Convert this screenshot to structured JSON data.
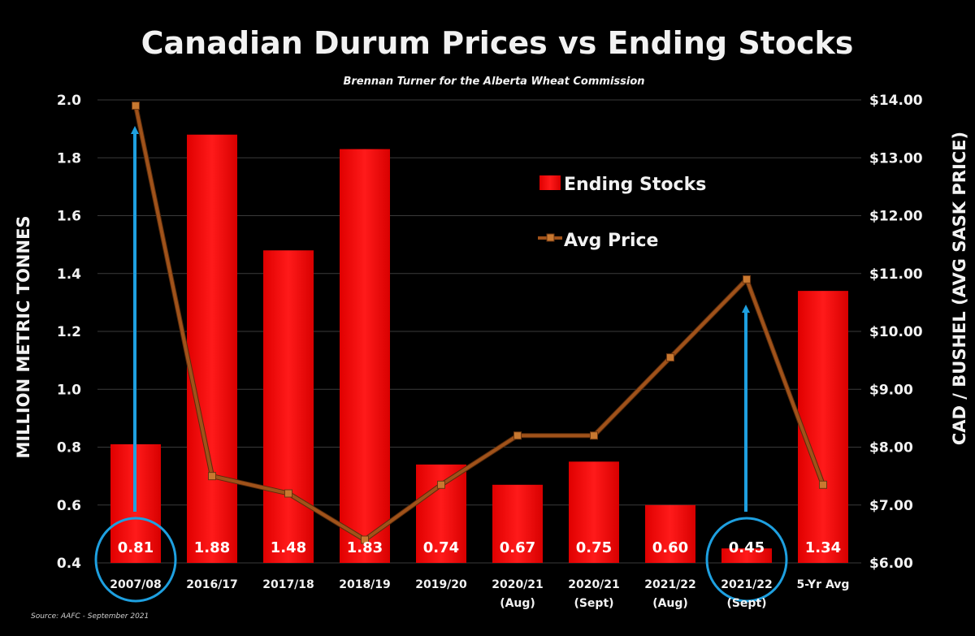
{
  "chart_data": {
    "type": "bar",
    "title": "Canadian Durum Prices vs Ending Stocks",
    "subtitle": "Brennan Turner for the Alberta Wheat Commission",
    "source": "Source: AAFC -  September 2021",
    "categories": [
      [
        "2007/08"
      ],
      [
        "2016/17"
      ],
      [
        "2017/18"
      ],
      [
        "2018/19"
      ],
      [
        "2019/20"
      ],
      [
        "2020/21",
        "(Aug)"
      ],
      [
        "2020/21",
        "(Sept)"
      ],
      [
        "2021/22",
        "(Aug)"
      ],
      [
        "2021/22",
        "(Sept)"
      ],
      [
        "5-Yr Avg"
      ]
    ],
    "ylabel_left": "MILLION METRIC TONNES",
    "ylabel_right": "CAD / BUSHEL (AVG SASK PRICE)",
    "ylim_left": [
      0.4,
      2.0
    ],
    "yticks_left": [
      "0.4",
      "0.6",
      "0.8",
      "1.0",
      "1.2",
      "1.4",
      "1.6",
      "1.8",
      "2.0"
    ],
    "ylim_right": [
      6,
      14
    ],
    "yticks_right": [
      "$6.00",
      "$7.00",
      "$8.00",
      "$9.00",
      "$10.00",
      "$11.00",
      "$12.00",
      "$13.00",
      "$14.00"
    ],
    "grid": true,
    "legend_position": "top-right",
    "series": [
      {
        "name": "Ending Stocks",
        "type": "bar",
        "axis": "left",
        "color": "#ff0000",
        "values": [
          0.81,
          1.88,
          1.48,
          1.83,
          0.74,
          0.67,
          0.75,
          0.6,
          0.45,
          1.34
        ],
        "labels": [
          "0.81",
          "1.88",
          "1.48",
          "1.83",
          "0.74",
          "0.67",
          "0.75",
          "0.60",
          "0.45",
          "1.34"
        ]
      },
      {
        "name": "Avg Price",
        "type": "line",
        "axis": "right",
        "color": "#a0521a",
        "values": [
          13.9,
          7.5,
          7.2,
          6.4,
          7.35,
          8.2,
          8.2,
          9.55,
          10.9,
          7.35
        ]
      }
    ],
    "highlights": [
      {
        "category_index": 0,
        "shape": "circle",
        "arrow": "up",
        "color": "#1ea0e0"
      },
      {
        "category_index": 8,
        "shape": "circle",
        "arrow": "up",
        "color": "#1ea0e0"
      }
    ]
  }
}
